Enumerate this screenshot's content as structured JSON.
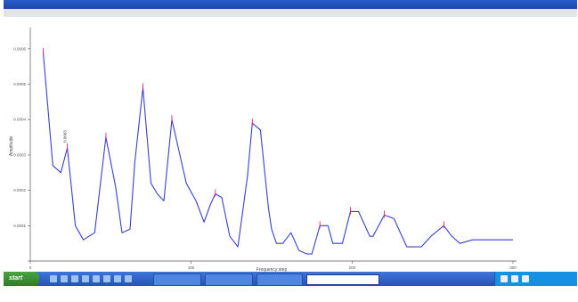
{
  "window": {
    "title": "",
    "controls": ""
  },
  "caption": "",
  "info_block": {
    "lines": [
      "",
      "",
      "",
      ""
    ]
  },
  "cursor_readout": {
    "lines": [
      "",
      "",
      ""
    ]
  },
  "taskbar": {
    "start_label": "start",
    "buttons": [
      {
        "label": ""
      },
      {
        "label": ""
      },
      {
        "label": ""
      }
    ],
    "search_placeholder": "",
    "clock": ""
  },
  "colors": {
    "trace": "#3a3fd0",
    "peak_marker": "#d6246e",
    "axis": "#555555",
    "taskbar": "#2553b8"
  },
  "chart_data": {
    "type": "line",
    "title": "",
    "xlabel": "Frequency step",
    "ylabel": "Amplitude",
    "x_ticks": [
      "0",
      "100",
      "200",
      "300"
    ],
    "y_ticks": [
      "",
      "0.0001",
      "0.0002",
      "0.0003",
      "0.0004",
      "0.0005",
      "0.0006"
    ],
    "xlim": [
      0,
      300
    ],
    "ylim": [
      0,
      0.00065
    ],
    "annotation": "0.0003",
    "series": [
      {
        "x": [
          8,
          14,
          19,
          23,
          28,
          33,
          40,
          47,
          53,
          57,
          62,
          65,
          70,
          75,
          79,
          83,
          88,
          97,
          103,
          108,
          112,
          115,
          119,
          124,
          129,
          135,
          138,
          143,
          148,
          150,
          153,
          157,
          162,
          167,
          172,
          175,
          180,
          185,
          188,
          190,
          194,
          199,
          204,
          211,
          213,
          220,
          226,
          234,
          238,
          243,
          249,
          257,
          262,
          267,
          275,
          280,
          285,
          290,
          295,
          300
        ],
        "y": [
          0.00059,
          0.00027,
          0.00025,
          0.00032,
          0.0001,
          6e-05,
          8e-05,
          0.00035,
          0.00021,
          8e-05,
          9e-05,
          0.00028,
          0.00049,
          0.00022,
          0.00019,
          0.00017,
          0.0004,
          0.00022,
          0.00017,
          0.00011,
          0.00016,
          0.00019,
          0.00018,
          7e-05,
          4e-05,
          0.00024,
          0.00039,
          0.00037,
          0.00015,
          9e-05,
          5e-05,
          5e-05,
          8e-05,
          3e-05,
          2e-05,
          2e-05,
          0.0001,
          0.0001,
          5e-05,
          5e-05,
          5e-05,
          0.00014,
          0.00014,
          7e-05,
          7e-05,
          0.00013,
          0.00012,
          4e-05,
          4e-05,
          4e-05,
          7e-05,
          0.0001,
          7e-05,
          5e-05,
          6e-05,
          6e-05,
          6e-05,
          6e-05,
          6e-05,
          6e-05
        ]
      }
    ]
  }
}
